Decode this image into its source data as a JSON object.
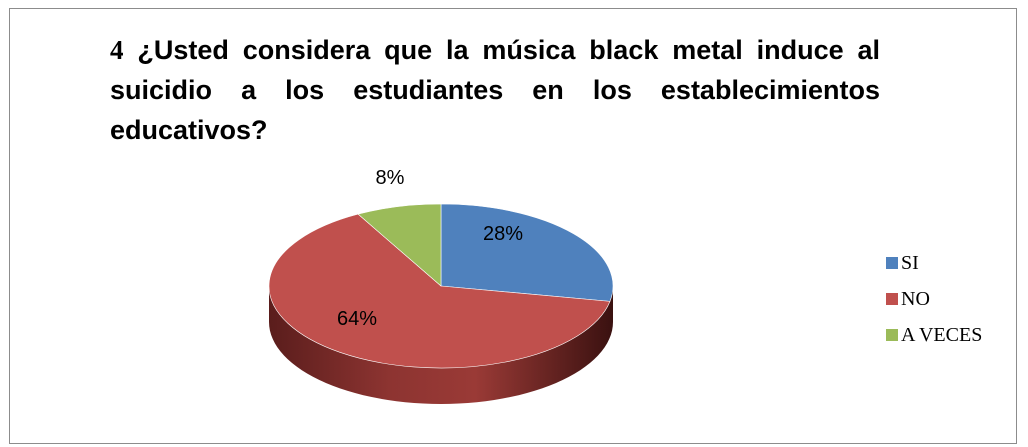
{
  "title": {
    "number": "4",
    "text": " ¿Usted considera que la música black metal induce al suicidio a los estudiantes en los establecimientos educativos?"
  },
  "chart_data": {
    "type": "pie",
    "title": "4 ¿Usted considera que la música black metal induce al suicidio a los estudiantes en los establecimientos educativos?",
    "categories": [
      "SI",
      "NO",
      "A VECES"
    ],
    "values": [
      28,
      64,
      8
    ],
    "data_labels": [
      "28%",
      "64%",
      "8%"
    ],
    "colors": [
      "#4f81bd",
      "#c0504d",
      "#9bbb59"
    ],
    "style": "3d",
    "legend_position": "right"
  }
}
